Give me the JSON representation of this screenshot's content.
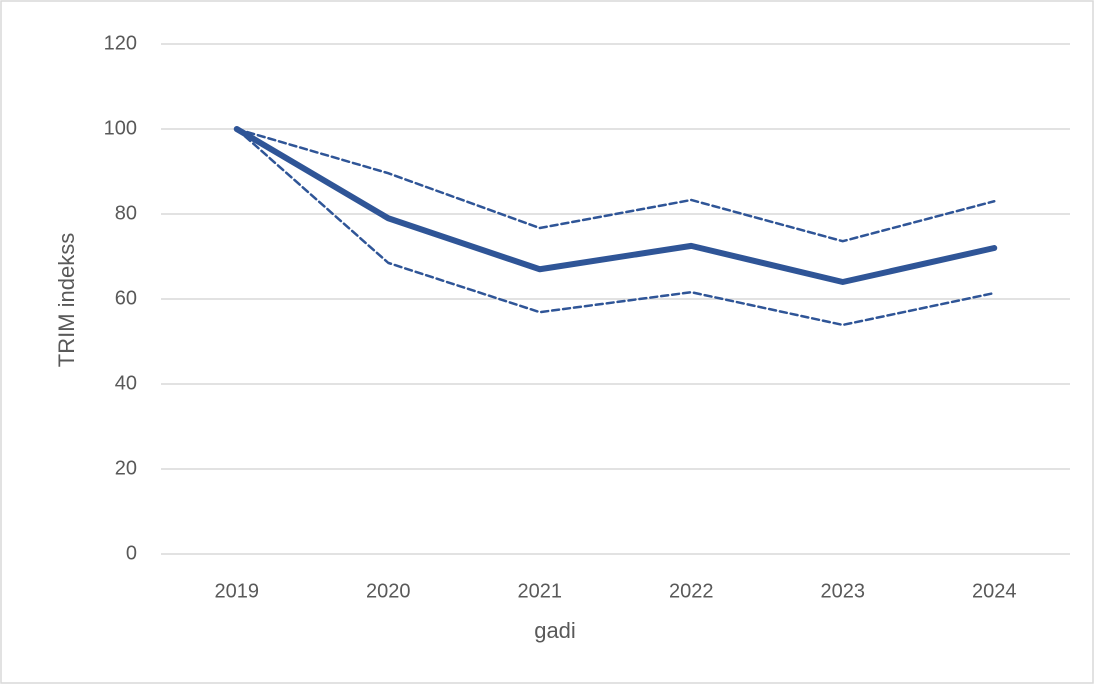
{
  "chart_data": {
    "type": "line",
    "x_label": "gadi",
    "y_label": "TRIM indekss",
    "categories": [
      "2019",
      "2020",
      "2021",
      "2022",
      "2023",
      "2024"
    ],
    "series": [
      {
        "color": "#2f5597",
        "style": "solid",
        "values": [
          100,
          79,
          67,
          72.5,
          64,
          72
        ]
      },
      {
        "color": "#2f5597",
        "style": "dashed",
        "values": [
          100,
          89.6,
          76.7,
          83.3,
          73.6,
          83
        ]
      },
      {
        "color": "#2f5597",
        "style": "dashed",
        "values": [
          100,
          68.5,
          56.9,
          61.6,
          53.9,
          61.4
        ]
      }
    ],
    "ylim": [
      0,
      120
    ],
    "yticks": [
      0,
      20,
      40,
      60,
      80,
      100,
      120
    ],
    "grid": true
  }
}
